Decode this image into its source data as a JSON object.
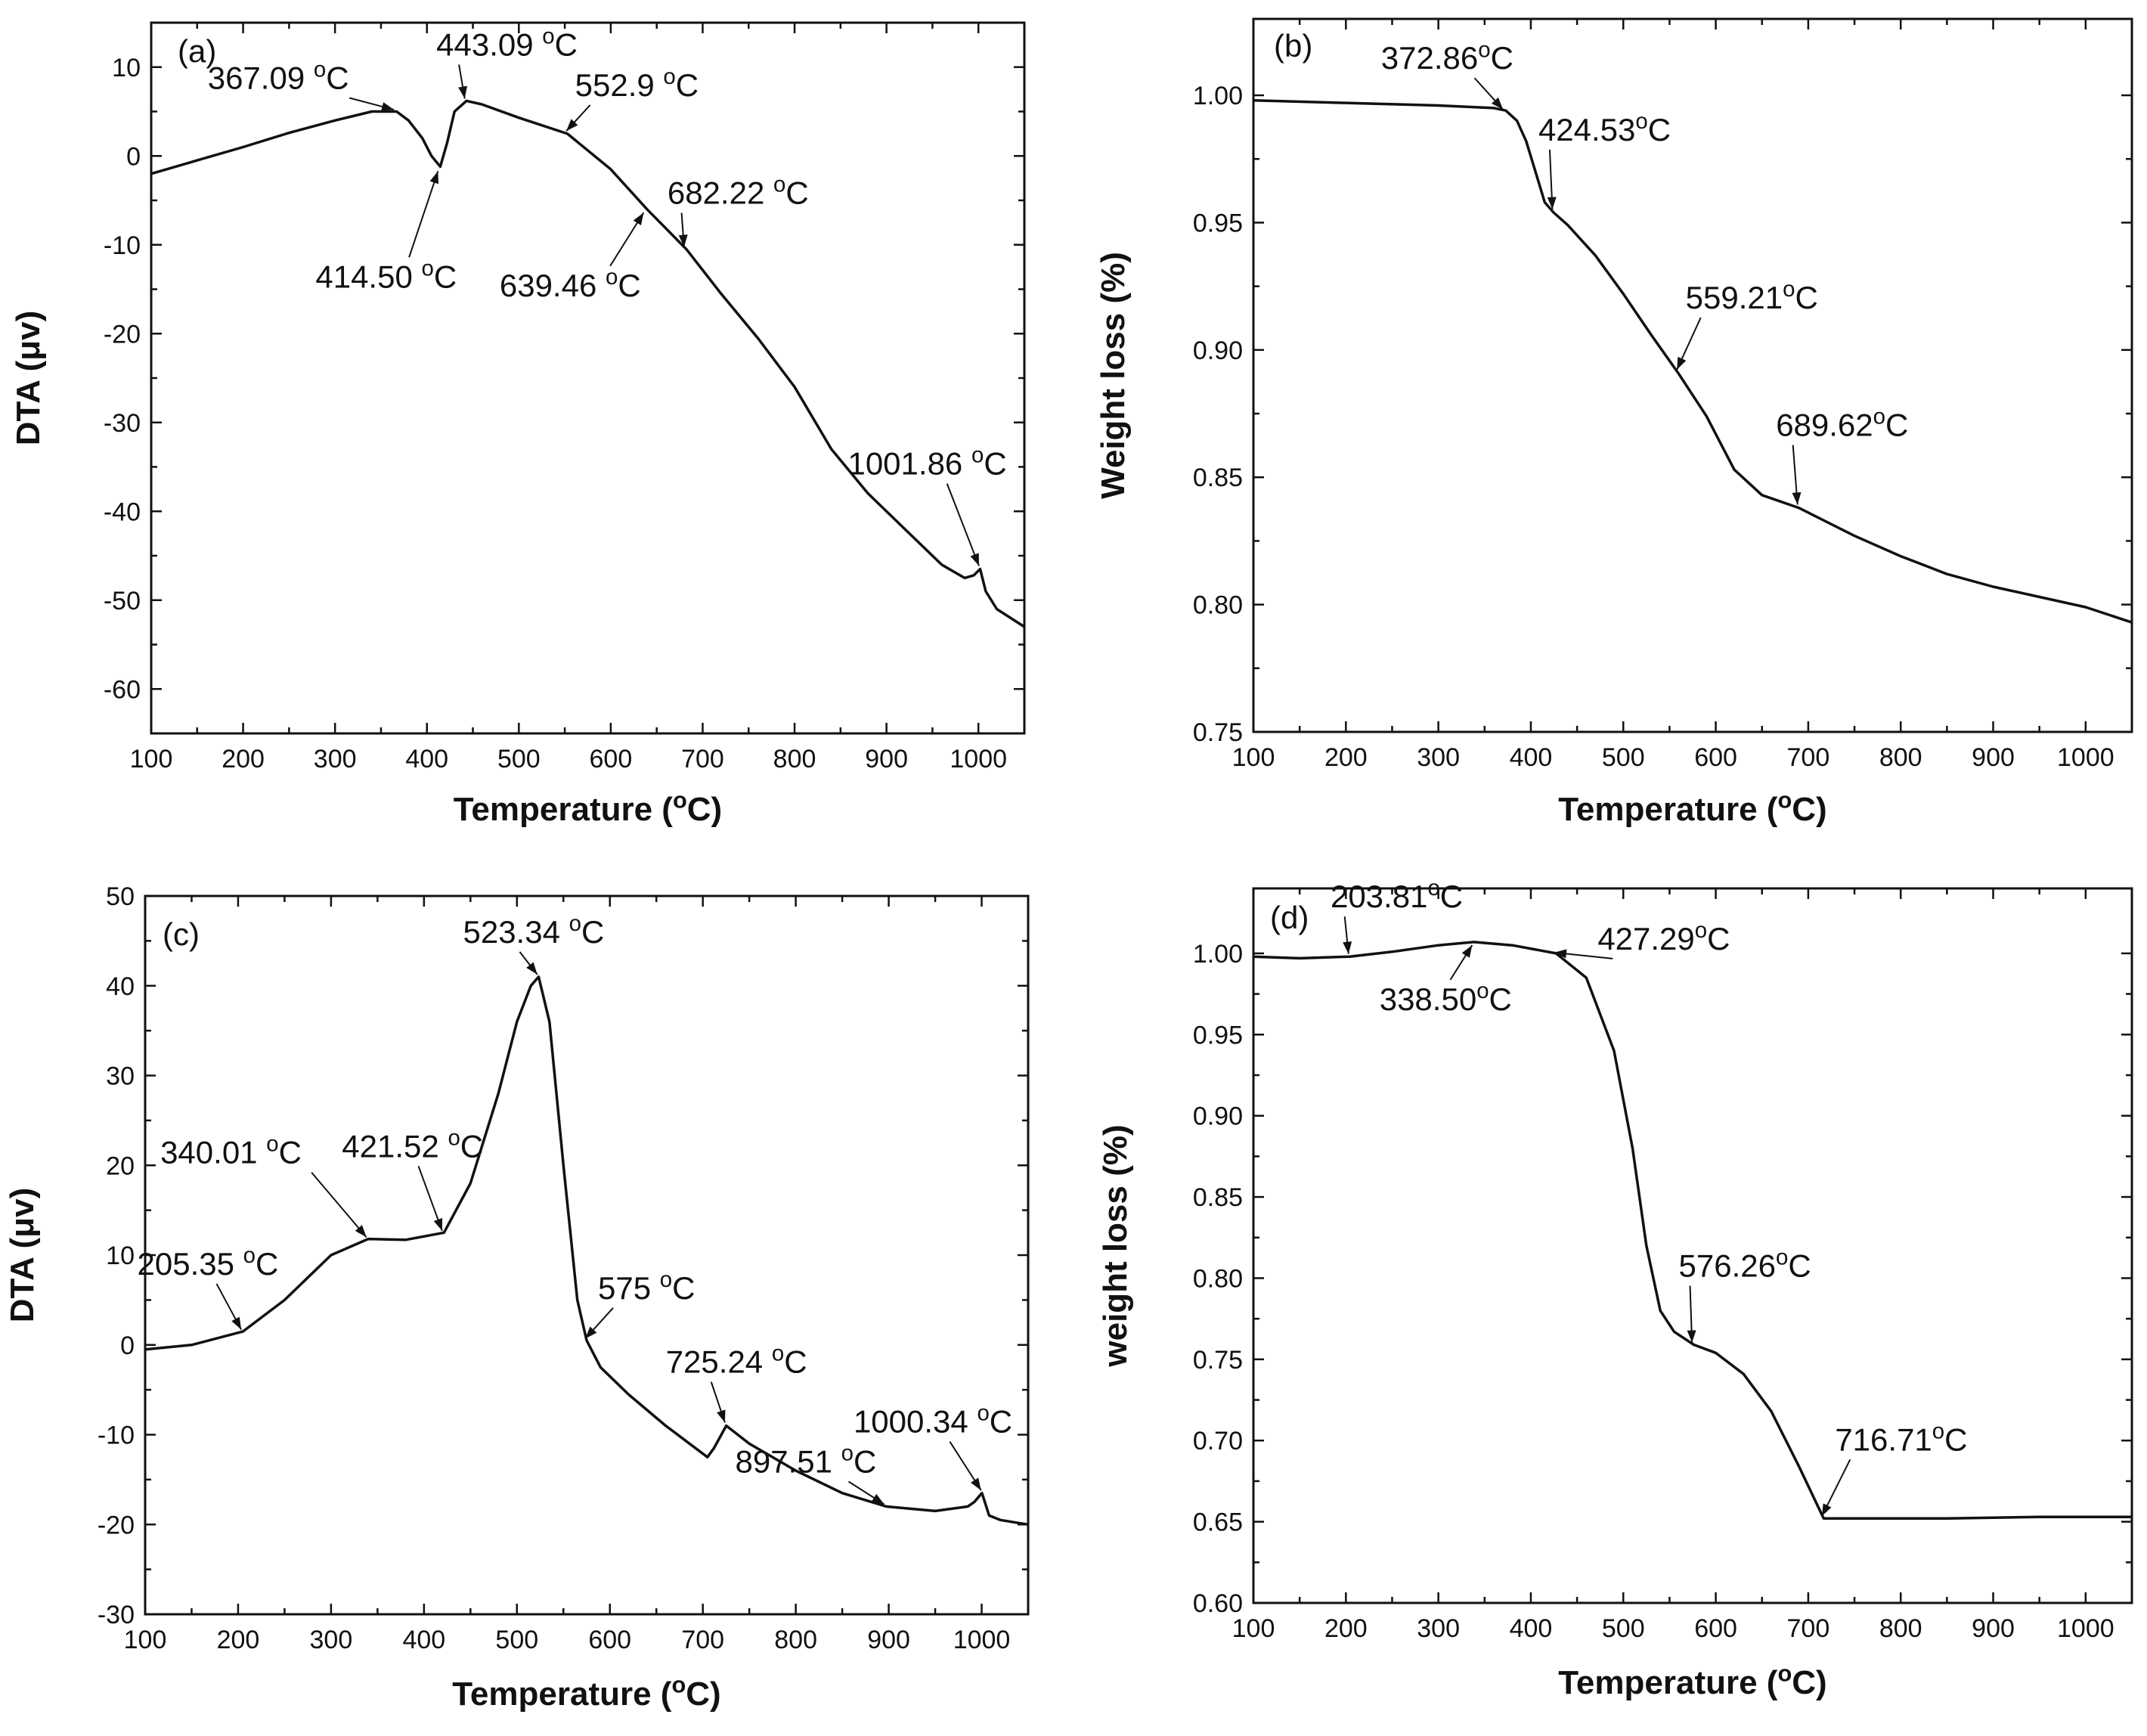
{
  "chart_data": [
    {
      "id": "a",
      "type": "line",
      "panel_label": "(a)",
      "xlabel": "Temperature (°C)",
      "ylabel": "DTA (μv)",
      "xlim": [
        100,
        1050
      ],
      "ylim": [
        -65,
        15
      ],
      "xticks": [
        100,
        200,
        300,
        400,
        500,
        600,
        700,
        800,
        900,
        1000
      ],
      "yticks": [
        10,
        0,
        -10,
        -20,
        -30,
        -40,
        -50,
        -60
      ],
      "x": [
        100,
        150,
        200,
        250,
        300,
        340,
        367,
        380,
        395,
        405,
        414.5,
        422,
        430,
        443,
        460,
        500,
        552.9,
        600,
        639.46,
        682.22,
        720,
        760,
        800,
        840,
        880,
        920,
        960,
        985,
        995,
        1001.86,
        1008,
        1020,
        1050
      ],
      "y": [
        -2,
        -0.5,
        1,
        2.6,
        4,
        5,
        5,
        4,
        2,
        0,
        -1.2,
        1.5,
        5,
        6.2,
        5.8,
        4.3,
        2.5,
        -1.5,
        -6,
        -10.5,
        -15.5,
        -20.5,
        -26,
        -33,
        -38,
        -42,
        -46,
        -47.5,
        -47.2,
        -46.5,
        -49,
        -51,
        -53
      ],
      "annotations": [
        {
          "text": "367.09 °C",
          "x": 367.09,
          "y": 5.0
        },
        {
          "text": "443.09 °C",
          "x": 443.09,
          "y": 6.2
        },
        {
          "text": "552.9 °C",
          "x": 552.9,
          "y": 2.5
        },
        {
          "text": "414.50 °C",
          "x": 414.5,
          "y": -1.2
        },
        {
          "text": "682.22 °C",
          "x": 682.22,
          "y": -10.5
        },
        {
          "text": "639.46 °C",
          "x": 639.46,
          "y": -6.0
        },
        {
          "text": "1001.86 °C",
          "x": 1001.86,
          "y": -46.5
        }
      ]
    },
    {
      "id": "b",
      "type": "line",
      "panel_label": "(b)",
      "xlabel": "Temperature (°C)",
      "ylabel": "Weight loss (%)",
      "xlim": [
        100,
        1050
      ],
      "ylim": [
        0.75,
        1.03
      ],
      "xticks": [
        100,
        200,
        300,
        400,
        500,
        600,
        700,
        800,
        900,
        1000
      ],
      "yticks": [
        1.0,
        0.95,
        0.9,
        0.85,
        0.8,
        0.75
      ],
      "x": [
        100,
        200,
        300,
        360,
        372.86,
        385,
        395,
        405,
        415,
        424.53,
        440,
        470,
        500,
        530,
        559.21,
        590,
        620,
        650,
        689.62,
        750,
        800,
        850,
        900,
        950,
        1000,
        1050
      ],
      "y": [
        0.998,
        0.997,
        0.996,
        0.995,
        0.994,
        0.99,
        0.982,
        0.97,
        0.958,
        0.954,
        0.949,
        0.937,
        0.922,
        0.906,
        0.891,
        0.874,
        0.853,
        0.843,
        0.838,
        0.827,
        0.819,
        0.812,
        0.807,
        0.803,
        0.799,
        0.793
      ],
      "annotations": [
        {
          "text": "372.86°C",
          "x": 372.86,
          "y": 0.994
        },
        {
          "text": "424.53°C",
          "x": 424.53,
          "y": 0.954
        },
        {
          "text": "559.21°C",
          "x": 559.21,
          "y": 0.891
        },
        {
          "text": "689.62°C",
          "x": 689.62,
          "y": 0.838
        }
      ]
    },
    {
      "id": "c",
      "type": "line",
      "panel_label": "(c)",
      "xlabel": "Temperature (°C)",
      "ylabel": "DTA (μv)",
      "xlim": [
        100,
        1050
      ],
      "ylim": [
        -30,
        50
      ],
      "xticks": [
        100,
        200,
        300,
        400,
        500,
        600,
        700,
        800,
        900,
        1000
      ],
      "yticks": [
        50,
        40,
        30,
        20,
        10,
        0,
        -10,
        -20,
        -30
      ],
      "x": [
        100,
        150,
        205.35,
        250,
        300,
        340.01,
        380,
        421.52,
        450,
        480,
        500,
        515,
        523.34,
        535,
        550,
        565,
        575,
        590,
        620,
        660,
        705,
        712,
        725.24,
        750,
        800,
        850,
        897.51,
        950,
        985,
        992,
        1000.34,
        1008,
        1020,
        1050
      ],
      "y": [
        -0.5,
        0,
        1.5,
        5,
        10,
        11.8,
        11.7,
        12.5,
        18,
        28,
        36,
        40,
        41,
        36,
        20,
        5,
        0.5,
        -2.5,
        -5.5,
        -9,
        -12.5,
        -11.5,
        -9,
        -11,
        -14,
        -16.5,
        -18,
        -18.5,
        -18,
        -17.5,
        -16.5,
        -19,
        -19.5,
        -20
      ],
      "annotations": [
        {
          "text": "205.35 °C",
          "x": 205.35,
          "y": 1.5
        },
        {
          "text": "340.01 °C",
          "x": 340.01,
          "y": 11.8
        },
        {
          "text": "421.52 °C",
          "x": 421.52,
          "y": 12.5
        },
        {
          "text": "523.34 °C",
          "x": 523.34,
          "y": 41.0
        },
        {
          "text": "575 °C",
          "x": 575,
          "y": 0.5
        },
        {
          "text": "725.24 °C",
          "x": 725.24,
          "y": -9.0
        },
        {
          "text": "897.51 °C",
          "x": 897.51,
          "y": -18.0
        },
        {
          "text": "1000.34 °C",
          "x": 1000.34,
          "y": -16.5
        }
      ]
    },
    {
      "id": "d",
      "type": "line",
      "panel_label": "(d)",
      "xlabel": "Temperature (°C)",
      "ylabel": "weight loss (%)",
      "xlim": [
        100,
        1050
      ],
      "ylim": [
        0.6,
        1.04
      ],
      "xticks": [
        100,
        200,
        300,
        400,
        500,
        600,
        700,
        800,
        900,
        1000
      ],
      "yticks": [
        1.0,
        0.95,
        0.9,
        0.85,
        0.8,
        0.75,
        0.7,
        0.65,
        0.6
      ],
      "x": [
        100,
        150,
        203.81,
        250,
        300,
        338.5,
        380,
        427.29,
        460,
        490,
        510,
        525,
        540,
        555,
        576.26,
        600,
        630,
        660,
        690,
        716.71,
        750,
        850,
        950,
        1050
      ],
      "y": [
        0.998,
        0.997,
        0.998,
        1.001,
        1.005,
        1.007,
        1.005,
        1.0,
        0.985,
        0.94,
        0.88,
        0.82,
        0.78,
        0.767,
        0.759,
        0.754,
        0.741,
        0.718,
        0.684,
        0.652,
        0.652,
        0.652,
        0.653,
        0.653
      ],
      "annotations": [
        {
          "text": "203.81°C",
          "x": 203.81,
          "y": 0.998
        },
        {
          "text": "338.50°C",
          "x": 338.5,
          "y": 1.007
        },
        {
          "text": "427.29°C",
          "x": 427.29,
          "y": 1.0
        },
        {
          "text": "576.26°C",
          "x": 576.26,
          "y": 0.759
        },
        {
          "text": "716.71°C",
          "x": 716.71,
          "y": 0.652
        }
      ]
    }
  ]
}
